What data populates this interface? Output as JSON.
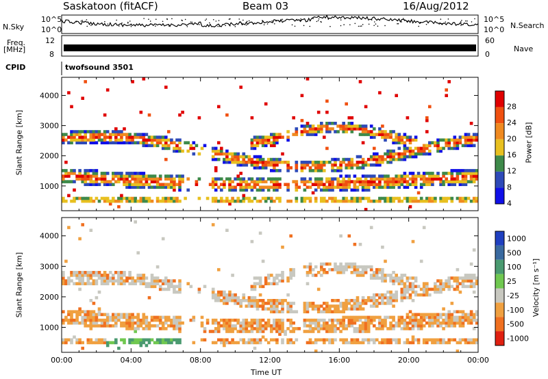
{
  "header": {
    "station": "Saskatoon (fitACF)",
    "beam": "Beam 03",
    "date": "16/Aug/2012"
  },
  "strip_labels": {
    "nsky": "N.Sky",
    "nsearch": "N.Search",
    "freq": "Freq.",
    "mhz": "[MHz]",
    "nave": "Nave",
    "cpid": "CPID",
    "cpid_value": "twofsound 3501",
    "nsky_ticks": [
      "10^5",
      "10^0"
    ],
    "nsearch_ticks": [
      "10^5",
      "10^0"
    ],
    "freq_ticks": [
      "12",
      "8"
    ],
    "nave_ticks": [
      "60",
      "0"
    ]
  },
  "chart_data": [
    {
      "type": "heatmap",
      "title": "",
      "ylabel": "Slant Range [km]",
      "xlabel": "",
      "xlim": [
        "00:00",
        "24:00"
      ],
      "ylim": [
        180,
        4600
      ],
      "y_ticks": [
        1000,
        2000,
        3000,
        4000
      ],
      "colorbar": {
        "label": "Power [dB]",
        "ticks": [
          "28",
          "24",
          "20",
          "16",
          "12",
          "8",
          "4"
        ],
        "colors": [
          "#e00000",
          "#f05010",
          "#f08a20",
          "#e8c020",
          "#3e8a4a",
          "#2e4ab8",
          "#1010e8"
        ]
      }
    },
    {
      "type": "heatmap",
      "title": "",
      "ylabel": "Slant Range [km]",
      "xlabel": "Time UT",
      "xlim": [
        "00:00",
        "24:00"
      ],
      "ylim": [
        180,
        4600
      ],
      "y_ticks": [
        1000,
        2000,
        3000,
        4000
      ],
      "x_ticks": [
        "00:00",
        "04:00",
        "08:00",
        "12:00",
        "16:00",
        "20:00",
        "00:00"
      ],
      "colorbar": {
        "label": "Velocity [m s⁻¹]",
        "ticks": [
          "1000",
          "500",
          "100",
          "25",
          "-25",
          "-100",
          "-500",
          "-1000"
        ],
        "colors": [
          "#2040c0",
          "#3a6aa0",
          "#4a9a70",
          "#70c850",
          "#c8c8c0",
          "#f0a040",
          "#f07020",
          "#e02010"
        ]
      }
    }
  ],
  "axis": {
    "x_ticks": [
      "00:00",
      "04:00",
      "08:00",
      "12:00",
      "16:00",
      "20:00",
      "00:00"
    ],
    "y_ticks": [
      "1000",
      "2000",
      "3000",
      "4000"
    ],
    "xlabel": "Time UT",
    "ylabel": "Slant Range [km]"
  }
}
